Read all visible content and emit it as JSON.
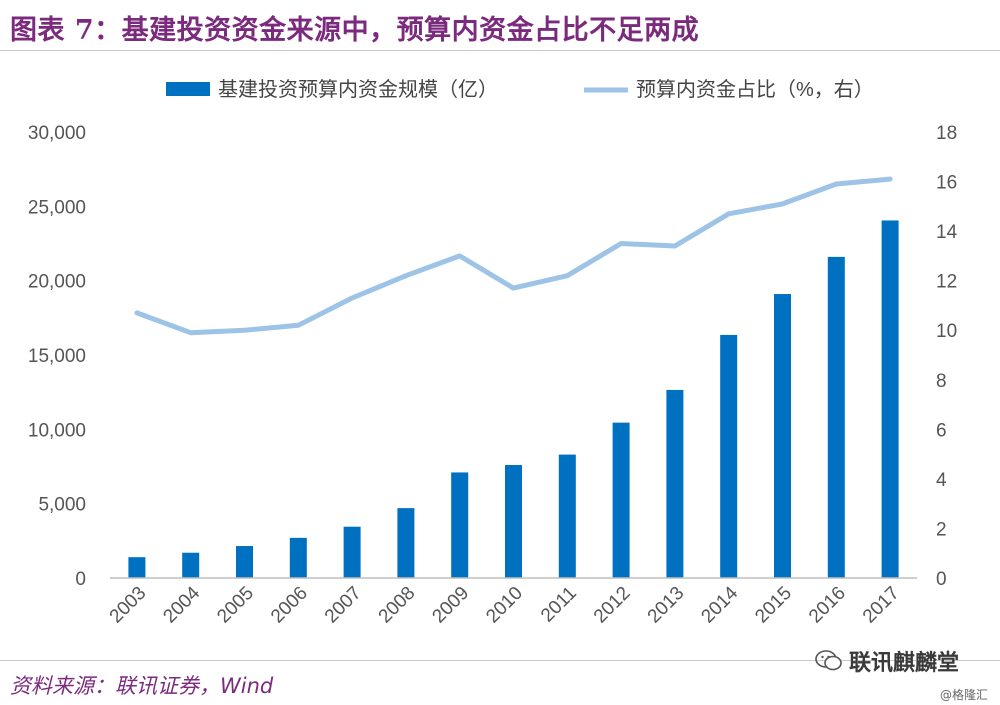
{
  "title": "图表 7：基建投资资金来源中，预算内资金占比不足两成",
  "source": "资料来源：联讯证券，Wind",
  "watermark": "联讯麒麟堂",
  "watermark_icon": "wechat-icon",
  "watermark_small": "@格隆汇",
  "colors": {
    "bar": "#0070c0",
    "line": "#9dc3e6",
    "title": "#7b2a7e"
  },
  "chart_data": {
    "type": "bar+line",
    "categories": [
      "2003",
      "2004",
      "2005",
      "2006",
      "2007",
      "2008",
      "2009",
      "2010",
      "2011",
      "2012",
      "2013",
      "2014",
      "2015",
      "2016",
      "2017"
    ],
    "series": [
      {
        "name": "基建投资预算内资金规模（亿）",
        "type": "bar",
        "axis": "left",
        "values": [
          1400,
          1700,
          2150,
          2700,
          3450,
          4700,
          7100,
          7600,
          8300,
          10450,
          12650,
          16350,
          19100,
          21600,
          24050
        ]
      },
      {
        "name": "预算内资金占比（%，右）",
        "type": "line",
        "axis": "right",
        "values": [
          10.7,
          9.9,
          10.0,
          10.2,
          11.3,
          12.2,
          13.0,
          11.7,
          12.2,
          13.5,
          13.4,
          14.7,
          15.1,
          15.9,
          16.1
        ]
      }
    ],
    "y_left": {
      "min": 0,
      "max": 30000,
      "ticks": [
        "0",
        "5,000",
        "10,000",
        "15,000",
        "20,000",
        "25,000",
        "30,000"
      ]
    },
    "y_right": {
      "min": 0,
      "max": 18,
      "ticks": [
        "0",
        "2",
        "4",
        "6",
        "8",
        "10",
        "12",
        "14",
        "16",
        "18"
      ]
    },
    "legend_position": "top",
    "grid": false
  }
}
